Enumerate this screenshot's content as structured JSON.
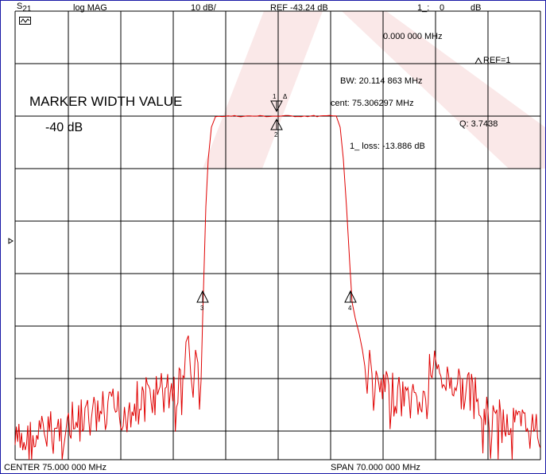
{
  "header": {
    "param": "S",
    "param_sub": "21",
    "format": "log MAG",
    "scale": "10 dB/",
    "ref": "REF -43.24 dB",
    "marker_num": "1_:",
    "marker_val": "0",
    "marker_unit": "dB"
  },
  "marker_readout": {
    "freq": "0.000 000 MHz",
    "ref_mode": "REF=1",
    "bw": "BW:   20.114 863 MHz",
    "cent": "cent:  75.306297 MHz",
    "q": "Q: 3.7438",
    "loss": "1_ loss: -13.886 dB"
  },
  "marker_width": {
    "title": "MARKER WIDTH VALUE",
    "value": "-40 dB"
  },
  "footer": {
    "center": "CENTER   75.000 000 MHz",
    "span": "SPAN   70.000 000 MHz"
  },
  "markers": [
    {
      "id": "1",
      "label": "1"
    },
    {
      "id": "2",
      "label": "2"
    },
    {
      "id": "3",
      "label": "3"
    },
    {
      "id": "4",
      "label": "4"
    }
  ],
  "colors": {
    "trace": "#e00000",
    "grid": "#000000",
    "frame": "#1a1aa6",
    "watermark": "#f6d6d6"
  },
  "icons": {
    "channel_icon": "channel-display-icon",
    "ref_pointer": "ref-level-pointer-icon"
  }
}
